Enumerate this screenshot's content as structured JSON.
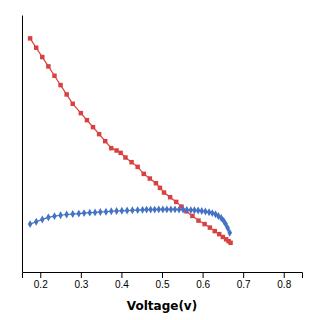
{
  "chart_data": {
    "type": "line",
    "xlabel": "Voltage(v)",
    "xlim": [
      0.155,
      0.845
    ],
    "ylim": [
      -0.05,
      1.05
    ],
    "xticks": [
      0.2,
      0.3,
      0.4,
      0.5,
      0.6,
      0.7,
      0.8
    ],
    "tick_labels": "x",
    "grid": false,
    "series": [
      {
        "color": "#d94040",
        "marker": "square",
        "x": [
          0.175,
          0.19,
          0.205,
          0.22,
          0.235,
          0.25,
          0.265,
          0.28,
          0.3,
          0.315,
          0.33,
          0.345,
          0.36,
          0.375,
          0.388,
          0.398,
          0.41,
          0.425,
          0.44,
          0.455,
          0.47,
          0.485,
          0.495,
          0.505,
          0.52,
          0.535,
          0.548,
          0.56,
          0.575,
          0.59,
          0.605,
          0.618,
          0.63,
          0.641,
          0.65,
          0.658,
          0.664,
          0.669
        ],
        "values": [
          0.95,
          0.91,
          0.87,
          0.83,
          0.79,
          0.75,
          0.71,
          0.67,
          0.63,
          0.6,
          0.57,
          0.54,
          0.51,
          0.48,
          0.47,
          0.46,
          0.44,
          0.42,
          0.4,
          0.37,
          0.35,
          0.33,
          0.31,
          0.29,
          0.27,
          0.25,
          0.23,
          0.21,
          0.19,
          0.17,
          0.155,
          0.14,
          0.125,
          0.112,
          0.1,
          0.09,
          0.082,
          0.075
        ]
      },
      {
        "color": "#4472c4",
        "marker": "diamond",
        "x": [
          0.175,
          0.19,
          0.205,
          0.22,
          0.235,
          0.25,
          0.265,
          0.28,
          0.295,
          0.308,
          0.322,
          0.335,
          0.348,
          0.362,
          0.375,
          0.388,
          0.401,
          0.414,
          0.427,
          0.44,
          0.452,
          0.462,
          0.472,
          0.482,
          0.492,
          0.502,
          0.512,
          0.522,
          0.532,
          0.542,
          0.552,
          0.561,
          0.571,
          0.58,
          0.589,
          0.598,
          0.607,
          0.616,
          0.624,
          0.632,
          0.639,
          0.646,
          0.652,
          0.657,
          0.662,
          0.667
        ],
        "values": [
          0.155,
          0.165,
          0.175,
          0.184,
          0.189,
          0.193,
          0.196,
          0.198,
          0.2,
          0.202,
          0.204,
          0.205,
          0.207,
          0.208,
          0.21,
          0.211,
          0.212,
          0.213,
          0.214,
          0.215,
          0.216,
          0.217,
          0.217,
          0.217,
          0.218,
          0.218,
          0.218,
          0.218,
          0.218,
          0.217,
          0.217,
          0.216,
          0.215,
          0.214,
          0.213,
          0.211,
          0.209,
          0.206,
          0.202,
          0.197,
          0.19,
          0.181,
          0.169,
          0.155,
          0.138,
          0.118
        ]
      }
    ]
  }
}
